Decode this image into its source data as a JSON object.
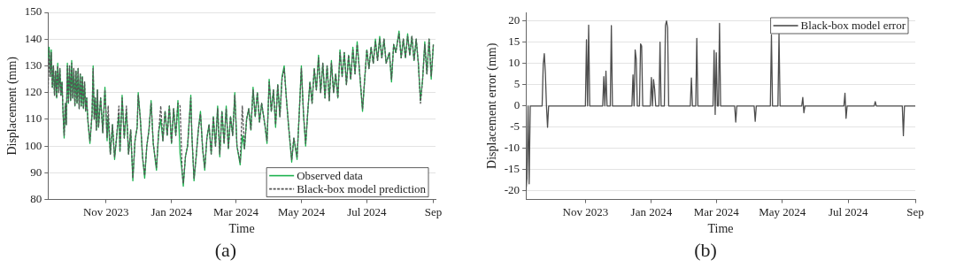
{
  "chart_data": [
    {
      "type": "line",
      "xlabel": "Time",
      "ylabel": "Displacement (mm)",
      "annotations": [
        "(a)"
      ],
      "xlim": [
        "2023-09-08",
        "2024-09-03"
      ],
      "xticks": [
        {
          "value": "2023-11-01",
          "label": "Nov 2023"
        },
        {
          "value": "2024-01-01",
          "label": "Jan 2024"
        },
        {
          "value": "2024-03-01",
          "label": "Mar 2024"
        },
        {
          "value": "2024-05-01",
          "label": "May 2024"
        },
        {
          "value": "2024-07-01",
          "label": "Jul 2024"
        },
        {
          "value": "2024-09-01",
          "label": "Sep"
        }
      ],
      "ylim": [
        80,
        150
      ],
      "yticks": [
        80,
        90,
        100,
        110,
        120,
        130,
        140,
        150
      ],
      "grid": "y",
      "legend": "bottom right",
      "marker": "none",
      "x": [
        "2023-09-08",
        "2023-09-09",
        "2023-09-10",
        "2023-09-11",
        "2023-09-12",
        "2023-09-13",
        "2023-09-14",
        "2023-09-15",
        "2023-09-16",
        "2023-09-17",
        "2023-09-18",
        "2023-09-19",
        "2023-09-20",
        "2023-09-21",
        "2023-09-22",
        "2023-09-23",
        "2023-09-24",
        "2023-09-25",
        "2023-09-26",
        "2023-09-27",
        "2023-09-28",
        "2023-09-29",
        "2023-09-30",
        "2023-10-01",
        "2023-10-02",
        "2023-10-03",
        "2023-10-04",
        "2023-10-05",
        "2023-10-06",
        "2023-10-07",
        "2023-10-08",
        "2023-10-09",
        "2023-10-10",
        "2023-10-11",
        "2023-10-12",
        "2023-10-13",
        "2023-10-14",
        "2023-10-15",
        "2023-10-17",
        "2023-10-19",
        "2023-10-20",
        "2023-10-21",
        "2023-10-22",
        "2023-10-23",
        "2023-10-24",
        "2023-10-25",
        "2023-10-27",
        "2023-10-29",
        "2023-10-31",
        "2023-11-02",
        "2023-11-03",
        "2023-11-05",
        "2023-11-07",
        "2023-11-09",
        "2023-11-11",
        "2023-11-13",
        "2023-11-14",
        "2023-11-16",
        "2023-11-18",
        "2023-11-20",
        "2023-11-22",
        "2023-11-24",
        "2023-11-26",
        "2023-11-28",
        "2023-11-30",
        "2023-12-01",
        "2023-12-03",
        "2023-12-05",
        "2023-12-07",
        "2023-12-09",
        "2023-12-11",
        "2023-12-13",
        "2023-12-15",
        "2023-12-18",
        "2023-12-20",
        "2023-12-22",
        "2023-12-24",
        "2023-12-26",
        "2023-12-28",
        "2023-12-30",
        "2024-01-01",
        "2024-01-03",
        "2024-01-05",
        "2024-01-07",
        "2024-01-09",
        "2024-01-11",
        "2024-01-12",
        "2024-01-14",
        "2024-01-16",
        "2024-01-19",
        "2024-01-20",
        "2024-01-22",
        "2024-01-24",
        "2024-01-26",
        "2024-01-28",
        "2024-01-30",
        "2024-02-01",
        "2024-02-03",
        "2024-02-05",
        "2024-02-07",
        "2024-02-09",
        "2024-02-11",
        "2024-02-13",
        "2024-02-15",
        "2024-02-17",
        "2024-02-19",
        "2024-02-21",
        "2024-02-23",
        "2024-02-25",
        "2024-02-27",
        "2024-02-29",
        "2024-03-02",
        "2024-03-05",
        "2024-03-07",
        "2024-03-09",
        "2024-03-11",
        "2024-03-13",
        "2024-03-15",
        "2024-03-17",
        "2024-03-19",
        "2024-03-21",
        "2024-03-23",
        "2024-03-25",
        "2024-03-28",
        "2024-03-30",
        "2024-04-01",
        "2024-04-03",
        "2024-04-05",
        "2024-04-07",
        "2024-04-09",
        "2024-04-11",
        "2024-04-13",
        "2024-04-15",
        "2024-04-17",
        "2024-04-19",
        "2024-04-22",
        "2024-04-24",
        "2024-04-27",
        "2024-04-29",
        "2024-05-01",
        "2024-05-03",
        "2024-05-05",
        "2024-05-07",
        "2024-05-09",
        "2024-05-11",
        "2024-05-13",
        "2024-05-15",
        "2024-05-17",
        "2024-05-19",
        "2024-05-21",
        "2024-05-23",
        "2024-05-25",
        "2024-05-27",
        "2024-05-29",
        "2024-05-31",
        "2024-06-02",
        "2024-06-04",
        "2024-06-06",
        "2024-06-08",
        "2024-06-10",
        "2024-06-12",
        "2024-06-14",
        "2024-06-16",
        "2024-06-18",
        "2024-06-20",
        "2024-06-22",
        "2024-06-24",
        "2024-06-27",
        "2024-06-29",
        "2024-07-01",
        "2024-07-03",
        "2024-07-05",
        "2024-07-07",
        "2024-07-09",
        "2024-07-11",
        "2024-07-13",
        "2024-07-15",
        "2024-07-17",
        "2024-07-19",
        "2024-07-22",
        "2024-07-24",
        "2024-07-26",
        "2024-07-28",
        "2024-07-31",
        "2024-08-02",
        "2024-08-04",
        "2024-08-06",
        "2024-08-08",
        "2024-08-10",
        "2024-08-12",
        "2024-08-14",
        "2024-08-16",
        "2024-08-18",
        "2024-08-20",
        "2024-08-22",
        "2024-08-24",
        "2024-08-26",
        "2024-08-28",
        "2024-08-30",
        "2024-09-01"
      ],
      "series": [
        {
          "name": "Observed data",
          "color": "#1db34f",
          "line_style": "solid",
          "values": [
            133,
            137,
            126,
            136,
            122,
            130,
            119,
            128,
            118,
            131,
            120,
            129,
            119,
            124,
            112,
            103,
            116,
            108,
            131,
            116,
            130,
            117,
            132,
            118,
            129,
            115,
            128,
            116,
            129,
            114,
            127,
            115,
            126,
            114,
            124,
            113,
            118,
            110,
            101,
            112,
            130,
            110,
            118,
            106,
            121,
            107,
            118,
            105,
            122,
            102,
            111,
            97,
            108,
            95,
            104,
            112,
            98,
            119,
            103,
            113,
            97,
            106,
            87,
            102,
            107,
            120,
            110,
            96,
            88,
            100,
            106,
            117,
            101,
            91,
            105,
            110,
            102,
            113,
            104,
            115,
            101,
            114,
            104,
            117,
            97,
            90,
            85,
            96,
            100,
            119,
            104,
            87,
            96,
            106,
            113,
            99,
            91,
            103,
            108,
            97,
            111,
            100,
            115,
            96,
            113,
            101,
            115,
            99,
            111,
            104,
            120,
            100,
            93,
            104,
            99,
            110,
            114,
            106,
            122,
            111,
            120,
            109,
            116,
            108,
            101,
            125,
            113,
            121,
            107,
            123,
            111,
            126,
            130,
            118,
            108,
            94,
            103,
            95,
            112,
            130,
            112,
            100,
            113,
            124,
            116,
            129,
            121,
            134,
            120,
            131,
            118,
            130,
            117,
            132,
            120,
            127,
            118,
            136,
            126,
            135,
            123,
            134,
            125,
            137,
            127,
            139,
            129,
            113,
            125,
            136,
            129,
            137,
            131,
            140,
            132,
            141,
            133,
            140,
            131,
            135,
            124,
            138,
            135,
            143,
            133,
            140,
            133,
            142,
            134,
            141,
            132,
            140,
            131,
            117,
            125,
            139,
            127,
            140,
            125,
            138
          ]
        },
        {
          "name": "Black-box model prediction",
          "color": "#555555",
          "line_style": "dashed",
          "values": [
            120,
            136,
            126,
            135,
            122,
            130,
            119,
            128,
            118,
            130,
            120,
            129,
            119,
            124,
            112,
            104,
            116,
            108,
            130,
            116,
            130,
            117,
            131,
            118,
            129,
            115,
            128,
            116,
            129,
            114,
            127,
            115,
            126,
            114,
            124,
            113,
            118,
            110,
            102,
            112,
            129,
            110,
            118,
            106,
            121,
            107,
            118,
            105,
            121,
            103,
            115,
            97,
            108,
            96,
            104,
            115,
            98,
            118,
            103,
            115,
            97,
            106,
            88,
            102,
            107,
            119,
            110,
            96,
            89,
            100,
            106,
            116,
            101,
            92,
            105,
            115,
            102,
            113,
            104,
            115,
            101,
            114,
            104,
            116,
            115,
            90,
            86,
            96,
            100,
            118,
            104,
            88,
            96,
            106,
            112,
            99,
            92,
            103,
            108,
            97,
            111,
            100,
            114,
            97,
            113,
            101,
            114,
            99,
            111,
            104,
            119,
            100,
            94,
            115,
            99,
            110,
            114,
            106,
            121,
            111,
            120,
            109,
            116,
            108,
            102,
            124,
            113,
            121,
            108,
            123,
            111,
            125,
            129,
            118,
            108,
            95,
            103,
            96,
            112,
            129,
            112,
            101,
            113,
            124,
            116,
            129,
            121,
            133,
            120,
            131,
            118,
            130,
            117,
            131,
            120,
            127,
            118,
            135,
            126,
            135,
            123,
            134,
            125,
            136,
            127,
            138,
            129,
            114,
            125,
            136,
            129,
            137,
            131,
            139,
            132,
            140,
            133,
            140,
            131,
            135,
            125,
            138,
            135,
            142,
            133,
            140,
            133,
            141,
            134,
            141,
            132,
            140,
            131,
            116,
            125,
            138,
            127,
            140,
            126,
            138
          ]
        }
      ]
    },
    {
      "type": "line",
      "xlabel": "Time",
      "ylabel": "Displacement error (mm)",
      "annotations": [
        "(b)"
      ],
      "xlim": [
        "2023-09-07",
        "2024-09-01"
      ],
      "xticks": [
        {
          "value": "2023-11-01",
          "label": "Nov 2023"
        },
        {
          "value": "2024-01-01",
          "label": "Jan 2024"
        },
        {
          "value": "2024-03-01",
          "label": "Mar 2024"
        },
        {
          "value": "2024-05-01",
          "label": "May 2024"
        },
        {
          "value": "2024-07-01",
          "label": "Jul 2024"
        },
        {
          "value": "2024-09-01",
          "label": "Sep"
        }
      ],
      "ylim": [
        -22,
        22
      ],
      "yticks": [
        -20,
        -15,
        -10,
        -5,
        0,
        5,
        10,
        15,
        20
      ],
      "grid": "y",
      "legend": "top right",
      "marker": "none",
      "x": [
        "2023-09-07",
        "2023-09-08",
        "2023-09-09",
        "2023-09-10",
        "2023-09-11",
        "2023-09-22",
        "2023-09-23",
        "2023-09-24",
        "2023-09-25",
        "2023-09-26",
        "2023-09-27",
        "2023-09-28",
        "2023-11-01",
        "2023-11-02",
        "2023-11-03",
        "2023-11-04",
        "2023-11-05",
        "2023-11-17",
        "2023-11-18",
        "2023-11-19",
        "2023-11-20",
        "2023-11-21",
        "2023-11-24",
        "2023-11-25",
        "2023-11-26",
        "2023-12-14",
        "2023-12-15",
        "2023-12-16",
        "2023-12-17",
        "2023-12-18",
        "2023-12-19",
        "2023-12-21",
        "2023-12-22",
        "2023-12-23",
        "2023-12-24",
        "2023-12-31",
        "2024-01-01",
        "2024-01-02",
        "2024-01-03",
        "2024-01-04",
        "2024-01-05",
        "2024-01-08",
        "2024-01-09",
        "2024-01-10",
        "2024-01-13",
        "2024-01-14",
        "2024-01-15",
        "2024-01-16",
        "2024-01-17",
        "2024-02-06",
        "2024-02-07",
        "2024-02-08",
        "2024-02-11",
        "2024-02-12",
        "2024-02-13",
        "2024-02-27",
        "2024-02-28",
        "2024-02-29",
        "2024-03-01",
        "2024-03-02",
        "2024-03-03",
        "2024-03-04",
        "2024-03-05",
        "2024-03-18",
        "2024-03-19",
        "2024-03-20",
        "2024-04-05",
        "2024-04-06",
        "2024-04-07",
        "2024-04-20",
        "2024-04-21",
        "2024-04-22",
        "2024-04-27",
        "2024-04-28",
        "2024-04-29",
        "2024-05-19",
        "2024-05-20",
        "2024-05-21",
        "2024-05-22",
        "2024-06-27",
        "2024-06-28",
        "2024-06-29",
        "2024-06-30",
        "2024-07-25",
        "2024-07-26",
        "2024-07-27",
        "2024-08-20",
        "2024-08-21",
        "2024-08-22",
        "2024-09-01"
      ],
      "series": [
        {
          "name": "Black-box model error",
          "color": "#4d4d4d",
          "line_style": "solid",
          "values": [
            -20,
            -17,
            0,
            -18.3,
            0,
            0,
            9.7,
            12.3,
            7.7,
            0,
            -5,
            0,
            0,
            15.6,
            0,
            19,
            0,
            0,
            6.9,
            0,
            8.2,
            0,
            0,
            18.9,
            0,
            0,
            7.3,
            0,
            13.2,
            11,
            0,
            0,
            14.6,
            14.1,
            0,
            0,
            6.7,
            0,
            6.2,
            4,
            0,
            0,
            15,
            0,
            0,
            18.9,
            20,
            18.4,
            0,
            0,
            6.6,
            0,
            0,
            15.9,
            0,
            0,
            13.1,
            -2,
            12.5,
            0,
            0,
            19.4,
            0,
            0,
            -3.8,
            0,
            0,
            -3.6,
            0,
            0,
            16.7,
            0,
            0,
            16.9,
            0,
            0,
            2,
            -1.6,
            0,
            0,
            3,
            -2.9,
            0,
            0,
            1,
            0,
            0,
            -7,
            0,
            0
          ]
        }
      ]
    }
  ]
}
